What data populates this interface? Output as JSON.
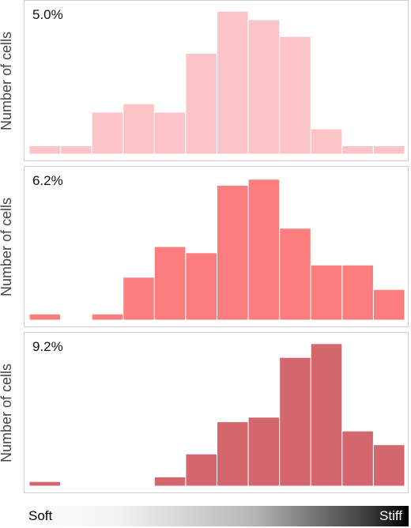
{
  "y_axis_label": "Number of cells",
  "chart_data": [
    {
      "type": "bar",
      "title": "5.0%",
      "ylabel": "Number of cells",
      "color": "#fcc4c7",
      "bins": 12,
      "values": [
        1,
        1,
        5,
        6,
        5,
        12,
        17,
        16,
        14,
        3,
        1,
        1
      ],
      "ylim": [
        0,
        17.5
      ]
    },
    {
      "type": "bar",
      "title": "6.2%",
      "ylabel": "Number of cells",
      "color": "#fb7d7e",
      "bins": 12,
      "values": [
        1,
        0,
        1,
        7,
        12,
        11,
        22,
        23,
        15,
        9,
        9,
        5
      ],
      "ylim": [
        0,
        24
      ]
    },
    {
      "type": "bar",
      "title": "9.2%",
      "ylabel": "Number of cells",
      "color": "#d4666d",
      "bins": 12,
      "values": [
        1,
        0,
        0,
        0,
        2,
        7,
        14,
        15,
        28,
        31,
        12,
        9
      ],
      "ylim": [
        0,
        32
      ]
    }
  ],
  "scale": {
    "left_label": "Soft",
    "right_label": "Stiff"
  }
}
